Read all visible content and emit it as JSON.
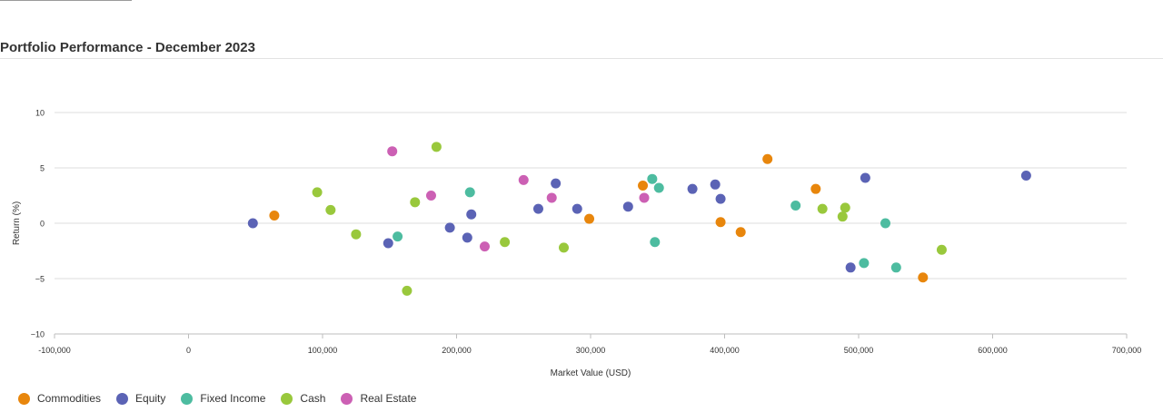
{
  "page": {
    "title": "Portfolio Performance - December 2023"
  },
  "chart_data": {
    "type": "scatter",
    "xlabel": "Market Value (USD)",
    "ylabel": "Return (%)",
    "xlim": [
      -100000,
      700000
    ],
    "ylim": [
      -10,
      10
    ],
    "x_ticks": [
      -100000,
      0,
      100000,
      200000,
      300000,
      400000,
      500000,
      600000,
      700000
    ],
    "x_tick_labels": [
      "-100,000",
      "0",
      "100,000",
      "200,000",
      "300,000",
      "400,000",
      "500,000",
      "600,000",
      "700,000"
    ],
    "y_ticks": [
      -10,
      -5,
      0,
      5,
      10
    ],
    "y_tick_labels": [
      "−10",
      "−5",
      "0",
      "5",
      "10"
    ],
    "grid": "horizontal",
    "legend_position": "bottom-left",
    "series": [
      {
        "name": "Commodities",
        "color": "#e8860c",
        "points": [
          [
            64000,
            0.7
          ],
          [
            299000,
            0.4
          ],
          [
            339000,
            3.4
          ],
          [
            397000,
            0.1
          ],
          [
            412000,
            -0.8
          ],
          [
            432000,
            5.8
          ],
          [
            468000,
            3.1
          ],
          [
            548000,
            -4.9
          ]
        ]
      },
      {
        "name": "Equity",
        "color": "#5b63b5",
        "points": [
          [
            48000,
            0.0
          ],
          [
            149000,
            -1.8
          ],
          [
            195000,
            -0.4
          ],
          [
            208000,
            -1.3
          ],
          [
            211000,
            0.8
          ],
          [
            261000,
            1.3
          ],
          [
            274000,
            3.6
          ],
          [
            290000,
            1.3
          ],
          [
            328000,
            1.5
          ],
          [
            376000,
            3.1
          ],
          [
            393000,
            3.5
          ],
          [
            397000,
            2.2
          ],
          [
            494000,
            -4.0
          ],
          [
            505000,
            4.1
          ],
          [
            625000,
            4.3
          ]
        ]
      },
      {
        "name": "Fixed Income",
        "color": "#4dbca0",
        "points": [
          [
            156000,
            -1.2
          ],
          [
            210000,
            2.8
          ],
          [
            346000,
            4.0
          ],
          [
            348000,
            -1.7
          ],
          [
            351000,
            3.2
          ],
          [
            453000,
            1.6
          ],
          [
            504000,
            -3.6
          ],
          [
            520000,
            0.0
          ],
          [
            528000,
            -4.0
          ]
        ]
      },
      {
        "name": "Cash",
        "color": "#99c83c",
        "points": [
          [
            96000,
            2.8
          ],
          [
            106000,
            1.2
          ],
          [
            125000,
            -1.0
          ],
          [
            163000,
            -6.1
          ],
          [
            169000,
            1.9
          ],
          [
            185000,
            6.9
          ],
          [
            236000,
            -1.7
          ],
          [
            280000,
            -2.2
          ],
          [
            473000,
            1.3
          ],
          [
            488000,
            0.6
          ],
          [
            490000,
            1.4
          ],
          [
            562000,
            -2.4
          ]
        ]
      },
      {
        "name": "Real Estate",
        "color": "#cc60b4",
        "points": [
          [
            152000,
            6.5
          ],
          [
            181000,
            2.5
          ],
          [
            221000,
            -2.1
          ],
          [
            250000,
            3.9
          ],
          [
            271000,
            2.3
          ],
          [
            340000,
            2.3
          ]
        ]
      }
    ]
  }
}
